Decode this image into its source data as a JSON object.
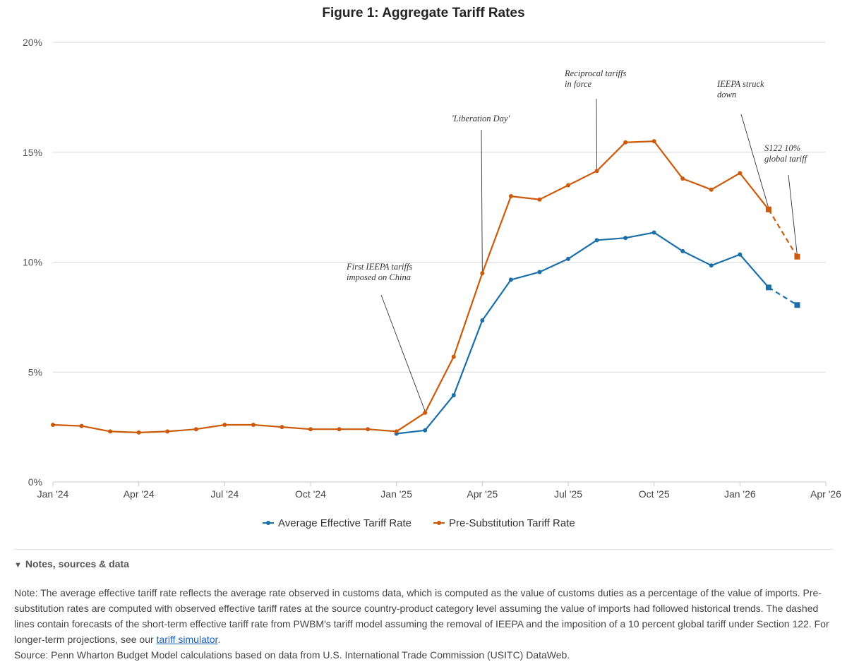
{
  "chart_data": {
    "type": "line",
    "title": "Figure 1: Aggregate Tariff Rates",
    "x": [
      "2024-01",
      "2024-02",
      "2024-03",
      "2024-04",
      "2024-05",
      "2024-06",
      "2024-07",
      "2024-08",
      "2024-09",
      "2024-10",
      "2024-11",
      "2024-12",
      "2025-01",
      "2025-02",
      "2025-03",
      "2025-04",
      "2025-05",
      "2025-06",
      "2025-07",
      "2025-08",
      "2025-09",
      "2025-10",
      "2025-11",
      "2025-12",
      "2026-01",
      "2026-02",
      "2026-03"
    ],
    "series": [
      {
        "name": "Average Effective Tariff Rate",
        "color": "#1a6fa8",
        "values": [
          null,
          null,
          null,
          null,
          null,
          null,
          null,
          null,
          null,
          null,
          null,
          null,
          2.2,
          2.35,
          3.95,
          7.35,
          9.2,
          9.55,
          10.15,
          11.0,
          11.1,
          11.35,
          10.5,
          9.85,
          10.35,
          8.85,
          8.05
        ],
        "forecast_from": "2026-02"
      },
      {
        "name": "Pre-Substitution Tariff Rate",
        "color": "#cc5a0a",
        "values": [
          2.6,
          2.55,
          2.3,
          2.25,
          2.3,
          2.4,
          2.6,
          2.6,
          2.5,
          2.4,
          2.4,
          2.4,
          2.3,
          3.15,
          5.7,
          9.5,
          13.0,
          12.85,
          13.5,
          14.15,
          15.45,
          15.5,
          13.8,
          13.3,
          14.05,
          12.4,
          10.25
        ],
        "forecast_from": "2026-02"
      }
    ],
    "x_tick_labels": [
      {
        "x": "2024-01",
        "label": "Jan '24"
      },
      {
        "x": "2024-04",
        "label": "Apr '24"
      },
      {
        "x": "2024-07",
        "label": "Jul '24"
      },
      {
        "x": "2024-10",
        "label": "Oct '24"
      },
      {
        "x": "2025-01",
        "label": "Jan '25"
      },
      {
        "x": "2025-04",
        "label": "Apr '25"
      },
      {
        "x": "2025-07",
        "label": "Jul '25"
      },
      {
        "x": "2025-10",
        "label": "Oct '25"
      },
      {
        "x": "2026-01",
        "label": "Jan '26"
      },
      {
        "x": "2026-04",
        "label": "Apr '26"
      }
    ],
    "y_tick_labels": [
      "0%",
      "5%",
      "10%",
      "15%",
      "20%"
    ],
    "ylim": [
      0,
      20
    ],
    "grid": true,
    "legend_position": "bottom-center",
    "annotations": [
      {
        "lines": [
          "First IEEPA tariffs",
          "imposed on China"
        ],
        "x": "2025-02",
        "series": 1
      },
      {
        "lines": [
          "'Liberation Day'"
        ],
        "x": "2025-04",
        "series": 1
      },
      {
        "lines": [
          "Reciprocal tariffs",
          "in force"
        ],
        "x": "2025-08",
        "series": 1
      },
      {
        "lines": [
          "IEEPA struck",
          "down"
        ],
        "x": "2026-02",
        "series": 1
      },
      {
        "lines": [
          "S122 10%",
          "global tariff"
        ],
        "x": "2026-03",
        "series": 1
      }
    ]
  },
  "notes": {
    "toggle_label": "Notes, sources & data",
    "note_text": "Note: The average effective tariff rate reflects the average rate observed in customs data, which is computed as the value of customs duties as a percentage of the value of imports. Pre-substitution rates are computed with observed effective tariff rates at the source country-product category level assuming the value of imports had followed historical trends. The dashed lines contain forecasts of the short-term effective tariff rate from PWBM's tariff model assuming the removal of IEEPA and the imposition of a 10 percent global tariff under Section 122. For longer-term projections, see our ",
    "link_text": "tariff simulator",
    "note_end": ".",
    "source_text": "Source: Penn Wharton Budget Model calculations based on data from U.S. International Trade Commission (USITC) DataWeb."
  }
}
